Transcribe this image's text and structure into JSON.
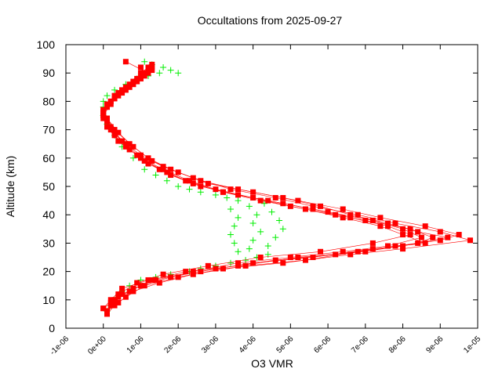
{
  "chart_data": {
    "type": "scatter",
    "title": "Occultations from 2025-09-27",
    "xlabel": "O3 VMR",
    "ylabel": "Altitude (km)",
    "xlim": [
      -1e-06,
      1e-05
    ],
    "ylim": [
      0,
      100
    ],
    "x_tick_labels": [
      "-1e-06",
      "0e+00",
      "1e-06",
      "2e-06",
      "3e-06",
      "4e-06",
      "5e-06",
      "6e-06",
      "7e-06",
      "8e-06",
      "9e-06",
      "1e-05"
    ],
    "y_tick_labels": [
      "0",
      "10",
      "20",
      "30",
      "40",
      "50",
      "60",
      "70",
      "80",
      "90",
      "100"
    ],
    "grid": false,
    "legend": "none",
    "series": [
      {
        "marker": "plus",
        "color": "#00ee00",
        "line": false,
        "points": [
          [
            1e-07,
            6
          ],
          [
            2e-07,
            8
          ],
          [
            3e-07,
            10
          ],
          [
            5e-07,
            13
          ],
          [
            7e-07,
            15
          ],
          [
            1e-06,
            17
          ],
          [
            1.4e-06,
            18
          ],
          [
            1.8e-06,
            19
          ],
          [
            2.3e-06,
            20
          ],
          [
            2.6e-06,
            21
          ],
          [
            3e-06,
            22
          ],
          [
            3.4e-06,
            23
          ],
          [
            3.8e-06,
            24
          ],
          [
            4.1e-06,
            25
          ],
          [
            4.4e-06,
            26
          ],
          [
            3.6e-06,
            27
          ],
          [
            3.9e-06,
            28
          ],
          [
            4.4e-06,
            29
          ],
          [
            3.5e-06,
            30
          ],
          [
            4e-06,
            31
          ],
          [
            4.6e-06,
            32
          ],
          [
            3.4e-06,
            33
          ],
          [
            4.2e-06,
            34
          ],
          [
            4.8e-06,
            35
          ],
          [
            3.5e-06,
            36
          ],
          [
            4e-06,
            37
          ],
          [
            4.7e-06,
            38
          ],
          [
            3.6e-06,
            39
          ],
          [
            4.1e-06,
            40
          ],
          [
            4.5e-06,
            41
          ],
          [
            3.4e-06,
            42
          ],
          [
            3.9e-06,
            43
          ],
          [
            4.3e-06,
            44
          ],
          [
            3.6e-06,
            45
          ],
          [
            3.3e-06,
            46
          ],
          [
            3e-06,
            47
          ],
          [
            2.6e-06,
            48
          ],
          [
            2.3e-06,
            49
          ],
          [
            2e-06,
            50
          ],
          [
            1.7e-06,
            52
          ],
          [
            1.4e-06,
            54
          ],
          [
            1.1e-06,
            56
          ],
          [
            8e-07,
            60
          ],
          [
            5e-07,
            64
          ],
          [
            3e-07,
            68
          ],
          [
            1e-07,
            72
          ],
          [
            0.0,
            75
          ],
          [
            0.0,
            78
          ],
          [
            0.0,
            80
          ],
          [
            1e-07,
            82
          ],
          [
            3e-07,
            84
          ],
          [
            6e-07,
            86
          ],
          [
            9e-07,
            88
          ],
          [
            1.2e-06,
            89
          ],
          [
            1.5e-06,
            90
          ],
          [
            1.8e-06,
            91
          ],
          [
            2e-06,
            90
          ],
          [
            1.6e-06,
            92
          ],
          [
            1.3e-06,
            93
          ],
          [
            1.1e-06,
            94
          ]
        ]
      },
      {
        "marker": "square",
        "color": "#ff0000",
        "line": true,
        "profiles": [
          [
            [
              1e-07,
              6
            ],
            [
              2e-07,
              8
            ],
            [
              4e-07,
              11
            ],
            [
              8e-07,
              14
            ],
            [
              1.4e-06,
              17
            ],
            [
              2.4e-06,
              20
            ],
            [
              3.6e-06,
              23
            ],
            [
              5e-06,
              25
            ],
            [
              6.4e-06,
              27
            ],
            [
              7.6e-06,
              29
            ],
            [
              8.5e-06,
              32
            ],
            [
              8e-06,
              35
            ],
            [
              7.2e-06,
              38
            ],
            [
              6e-06,
              41
            ],
            [
              4.8e-06,
              44
            ],
            [
              3.6e-06,
              47
            ],
            [
              2.6e-06,
              50
            ],
            [
              1.8e-06,
              54
            ],
            [
              1.2e-06,
              58
            ],
            [
              7e-07,
              63
            ],
            [
              3e-07,
              68
            ],
            [
              1e-07,
              73
            ],
            [
              0.0,
              76
            ],
            [
              1e-07,
              79
            ],
            [
              3e-07,
              82
            ],
            [
              6e-07,
              85
            ],
            [
              9e-07,
              88
            ],
            [
              1.1e-06,
              90
            ],
            [
              1.2e-06,
              92
            ]
          ],
          [
            [
              1e-07,
              6
            ],
            [
              3e-07,
              9
            ],
            [
              5e-07,
              12
            ],
            [
              1e-06,
              15
            ],
            [
              1.8e-06,
              18
            ],
            [
              3e-06,
              21
            ],
            [
              4.6e-06,
              24
            ],
            [
              6.2e-06,
              26
            ],
            [
              7.8e-06,
              29
            ],
            [
              9e-06,
              31
            ],
            [
              9.5e-06,
              33
            ],
            [
              8.6e-06,
              36
            ],
            [
              7.4e-06,
              39
            ],
            [
              6.4e-06,
              42
            ],
            [
              5.2e-06,
              45
            ],
            [
              4e-06,
              48
            ],
            [
              2.8e-06,
              51
            ],
            [
              2e-06,
              55
            ],
            [
              1.3e-06,
              59
            ],
            [
              8e-07,
              64
            ],
            [
              4e-07,
              69
            ],
            [
              1e-07,
              74
            ],
            [
              0.0,
              77
            ],
            [
              2e-07,
              80
            ],
            [
              4e-07,
              83
            ],
            [
              7e-07,
              86
            ],
            [
              1e-06,
              89
            ],
            [
              1.2e-06,
              91
            ]
          ],
          [
            [
              0.0,
              7
            ],
            [
              2e-07,
              9
            ],
            [
              4e-07,
              12
            ],
            [
              9e-07,
              16
            ],
            [
              1.6e-06,
              19
            ],
            [
              2.8e-06,
              22
            ],
            [
              4.2e-06,
              25
            ],
            [
              5.8e-06,
              27
            ],
            [
              7.2e-06,
              30
            ],
            [
              8.2e-06,
              33
            ],
            [
              7.6e-06,
              36
            ],
            [
              6.6e-06,
              39
            ],
            [
              5.6e-06,
              42
            ],
            [
              4.4e-06,
              45
            ],
            [
              3.2e-06,
              48
            ],
            [
              2.3e-06,
              52
            ],
            [
              1.6e-06,
              56
            ],
            [
              1e-06,
              60
            ],
            [
              6e-07,
              65
            ],
            [
              2e-07,
              70
            ],
            [
              0.0,
              75
            ],
            [
              1e-07,
              78
            ],
            [
              3e-07,
              81
            ],
            [
              5e-07,
              84
            ],
            [
              8e-07,
              87
            ],
            [
              1e-06,
              90
            ],
            [
              1.3e-06,
              93
            ]
          ],
          [
            [
              1e-07,
              5
            ],
            [
              3e-07,
              8
            ],
            [
              6e-07,
              11
            ],
            [
              1.1e-06,
              15
            ],
            [
              2e-06,
              18
            ],
            [
              3.2e-06,
              21
            ],
            [
              4.8e-06,
              23
            ],
            [
              6.6e-06,
              26
            ],
            [
              8e-06,
              28
            ],
            [
              9.8e-06,
              31
            ],
            [
              9e-06,
              34
            ],
            [
              7.8e-06,
              37
            ],
            [
              6.8e-06,
              40
            ],
            [
              5.6e-06,
              43
            ],
            [
              4.6e-06,
              46
            ],
            [
              3.4e-06,
              49
            ],
            [
              2.4e-06,
              53
            ],
            [
              1.6e-06,
              57
            ],
            [
              1e-06,
              61
            ],
            [
              5e-07,
              66
            ],
            [
              2e-07,
              71
            ],
            [
              0.0,
              76
            ],
            [
              1e-07,
              79
            ],
            [
              4e-07,
              82
            ],
            [
              7e-07,
              85
            ],
            [
              1e-06,
              88
            ],
            [
              1.3e-06,
              91
            ]
          ],
          [
            [
              1e-07,
              6
            ],
            [
              3e-07,
              10
            ],
            [
              7e-07,
              13
            ],
            [
              1.3e-06,
              17
            ],
            [
              2.2e-06,
              20
            ],
            [
              3.6e-06,
              22
            ],
            [
              5.2e-06,
              25
            ],
            [
              7e-06,
              27
            ],
            [
              8.4e-06,
              30
            ],
            [
              8.8e-06,
              32
            ],
            [
              8.2e-06,
              35
            ],
            [
              7e-06,
              38
            ],
            [
              6.2e-06,
              40
            ],
            [
              5e-06,
              43
            ],
            [
              4e-06,
              46
            ],
            [
              3e-06,
              49
            ],
            [
              2.2e-06,
              52
            ],
            [
              1.5e-06,
              56
            ],
            [
              9e-07,
              61
            ],
            [
              4e-07,
              66
            ],
            [
              1e-07,
              71
            ],
            [
              0.0,
              75
            ],
            [
              2e-07,
              79
            ],
            [
              5e-07,
              83
            ],
            [
              8e-07,
              86
            ],
            [
              1.1e-06,
              89
            ],
            [
              1.3e-06,
              92
            ]
          ],
          [
            [
              0.0,
              7
            ],
            [
              2e-07,
              10
            ],
            [
              5e-07,
              14
            ],
            [
              1.2e-06,
              17
            ],
            [
              2.6e-06,
              20
            ],
            [
              4e-06,
              23
            ],
            [
              5.6e-06,
              25
            ],
            [
              7.2e-06,
              28
            ],
            [
              8.6e-06,
              30
            ],
            [
              8e-06,
              33
            ],
            [
              7.4e-06,
              36
            ],
            [
              6.4e-06,
              39
            ],
            [
              5.4e-06,
              42
            ],
            [
              4.2e-06,
              45
            ],
            [
              3.2e-06,
              48
            ],
            [
              2.4e-06,
              51
            ],
            [
              1.7e-06,
              55
            ],
            [
              1.1e-06,
              59
            ],
            [
              6e-07,
              64
            ],
            [
              3e-07,
              69
            ],
            [
              0.0,
              74
            ],
            [
              1e-07,
              78
            ],
            [
              3e-07,
              81
            ],
            [
              6e-07,
              84
            ],
            [
              9e-07,
              87
            ],
            [
              1.2e-06,
              90
            ],
            [
              6e-07,
              94
            ]
          ],
          [
            [
              1e-07,
              6
            ],
            [
              4e-07,
              9
            ],
            [
              8e-07,
              13
            ],
            [
              1.5e-06,
              16
            ],
            [
              2.4e-06,
              19
            ],
            [
              3.8e-06,
              22
            ],
            [
              5.4e-06,
              24
            ],
            [
              6.8e-06,
              27
            ],
            [
              8e-06,
              29
            ],
            [
              9.2e-06,
              32
            ],
            [
              8.4e-06,
              34
            ],
            [
              7.6e-06,
              37
            ],
            [
              6.6e-06,
              40
            ],
            [
              5.8e-06,
              43
            ],
            [
              4.8e-06,
              46
            ],
            [
              3.6e-06,
              49
            ],
            [
              2.6e-06,
              52
            ],
            [
              1.8e-06,
              56
            ],
            [
              1.2e-06,
              60
            ],
            [
              7e-07,
              65
            ],
            [
              3e-07,
              70
            ],
            [
              1e-07,
              74
            ],
            [
              0.0,
              77
            ],
            [
              2e-07,
              80
            ],
            [
              5e-07,
              84
            ],
            [
              8e-07,
              87
            ],
            [
              1.1e-06,
              90
            ],
            [
              1e-06,
              92
            ]
          ]
        ]
      }
    ]
  }
}
